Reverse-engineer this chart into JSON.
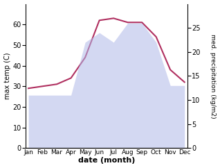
{
  "months": [
    "Jan",
    "Feb",
    "Mar",
    "Apr",
    "May",
    "Jun",
    "Jul",
    "Aug",
    "Sep",
    "Oct",
    "Nov",
    "Dec"
  ],
  "temp": [
    29,
    30,
    31,
    34,
    44,
    62,
    63,
    61,
    61,
    54,
    38,
    32
  ],
  "precip": [
    11,
    11,
    11,
    11,
    22,
    24,
    22,
    26,
    26,
    22,
    13,
    13
  ],
  "temp_color": "#b03060",
  "precip_fill_color": "#b0b8e8",
  "ylim_left": [
    0,
    70
  ],
  "ylim_right": [
    0,
    30
  ],
  "yticks_left": [
    0,
    10,
    20,
    30,
    40,
    50,
    60
  ],
  "yticks_right": [
    0,
    5,
    10,
    15,
    20,
    25
  ],
  "ylabel_left": "max temp (C)",
  "ylabel_right": "med. precipitation (kg/m2)",
  "xlabel": "date (month)",
  "background_color": "#ffffff",
  "fill_alpha": 0.55
}
